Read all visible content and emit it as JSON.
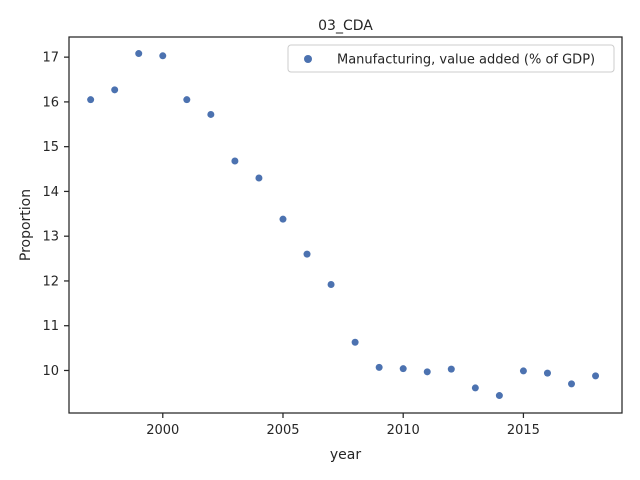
{
  "chart_data": {
    "type": "scatter",
    "title": "03_CDA",
    "xlabel": "year",
    "ylabel": "Proportion",
    "xlim": [
      1996.1,
      2019.1
    ],
    "ylim": [
      9.05,
      17.45
    ],
    "xticks": [
      2000,
      2005,
      2010,
      2015
    ],
    "yticks": [
      10,
      11,
      12,
      13,
      14,
      15,
      16,
      17
    ],
    "grid": false,
    "legend_position": "top-right",
    "series": [
      {
        "name": "Manufacturing, value added (% of GDP)",
        "color": "#4c72b0",
        "x": [
          1997,
          1998,
          1999,
          2000,
          2001,
          2002,
          2003,
          2004,
          2005,
          2006,
          2007,
          2008,
          2009,
          2010,
          2011,
          2012,
          2013,
          2014,
          2015,
          2016,
          2017,
          2018
        ],
        "y": [
          16.05,
          16.27,
          17.08,
          17.03,
          16.05,
          15.72,
          14.68,
          14.3,
          13.38,
          12.6,
          11.92,
          10.63,
          10.07,
          10.04,
          9.97,
          10.03,
          9.61,
          9.44,
          9.99,
          9.94,
          9.7,
          9.88
        ]
      }
    ]
  }
}
